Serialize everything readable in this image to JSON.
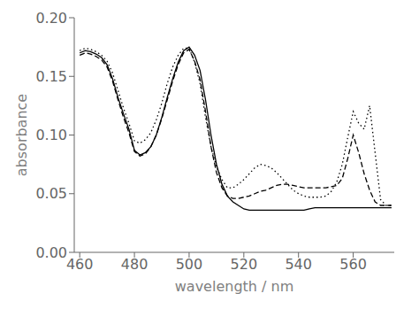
{
  "chart_data": {
    "type": "line",
    "xlabel": "wavelength / nm",
    "ylabel": "absorbance",
    "xlim": [
      458,
      575
    ],
    "ylim": [
      0.0,
      0.2
    ],
    "xticks": [
      460,
      480,
      500,
      520,
      540,
      560
    ],
    "yticks": [
      {
        "value": 0.0,
        "label": "0.00"
      },
      0.05,
      {
        "value": 0.1,
        "label": "0.10"
      },
      0.15,
      {
        "value": 0.2,
        "label": "0.20"
      }
    ],
    "grid": false,
    "x": [
      460,
      462,
      464,
      466,
      468,
      470,
      472,
      474,
      476,
      478,
      480,
      482,
      484,
      486,
      488,
      490,
      492,
      494,
      496,
      498,
      500,
      502,
      504,
      506,
      508,
      510,
      512,
      514,
      516,
      518,
      520,
      522,
      524,
      526,
      528,
      530,
      532,
      534,
      536,
      538,
      540,
      542,
      544,
      546,
      548,
      550,
      552,
      554,
      556,
      558,
      560,
      562,
      564,
      566,
      568,
      570,
      572,
      574
    ],
    "series": [
      {
        "color": "#000000",
        "line_style": "solid",
        "values": [
          0.17,
          0.172,
          0.171,
          0.169,
          0.166,
          0.16,
          0.148,
          0.132,
          0.118,
          0.105,
          0.087,
          0.083,
          0.085,
          0.09,
          0.1,
          0.115,
          0.132,
          0.148,
          0.162,
          0.172,
          0.175,
          0.168,
          0.155,
          0.13,
          0.1,
          0.075,
          0.058,
          0.048,
          0.043,
          0.04,
          0.037,
          0.036,
          0.036,
          0.036,
          0.036,
          0.036,
          0.036,
          0.036,
          0.036,
          0.036,
          0.036,
          0.036,
          0.037,
          0.038,
          0.038,
          0.038,
          0.038,
          0.038,
          0.038,
          0.038,
          0.038,
          0.038,
          0.038,
          0.038,
          0.038,
          0.038,
          0.038,
          0.038
        ]
      },
      {
        "color": "#000000",
        "line_style": "dashed",
        "values": [
          0.168,
          0.17,
          0.169,
          0.167,
          0.164,
          0.158,
          0.146,
          0.13,
          0.115,
          0.102,
          0.086,
          0.082,
          0.084,
          0.09,
          0.1,
          0.114,
          0.13,
          0.146,
          0.16,
          0.17,
          0.173,
          0.163,
          0.147,
          0.12,
          0.09,
          0.068,
          0.055,
          0.048,
          0.046,
          0.046,
          0.047,
          0.048,
          0.05,
          0.052,
          0.053,
          0.055,
          0.057,
          0.058,
          0.058,
          0.057,
          0.056,
          0.055,
          0.055,
          0.055,
          0.055,
          0.055,
          0.056,
          0.057,
          0.063,
          0.08,
          0.1,
          0.085,
          0.067,
          0.053,
          0.043,
          0.04,
          0.04,
          0.04
        ]
      },
      {
        "color": "#000000",
        "line_style": "dotted",
        "values": [
          0.172,
          0.174,
          0.173,
          0.171,
          0.168,
          0.163,
          0.153,
          0.138,
          0.123,
          0.11,
          0.095,
          0.093,
          0.096,
          0.102,
          0.113,
          0.127,
          0.144,
          0.158,
          0.168,
          0.174,
          0.174,
          0.162,
          0.144,
          0.115,
          0.09,
          0.073,
          0.062,
          0.055,
          0.055,
          0.058,
          0.062,
          0.067,
          0.072,
          0.075,
          0.074,
          0.072,
          0.068,
          0.063,
          0.058,
          0.053,
          0.05,
          0.048,
          0.047,
          0.047,
          0.047,
          0.048,
          0.052,
          0.06,
          0.075,
          0.098,
          0.12,
          0.11,
          0.105,
          0.125,
          0.085,
          0.045,
          0.04,
          0.04
        ]
      }
    ]
  }
}
